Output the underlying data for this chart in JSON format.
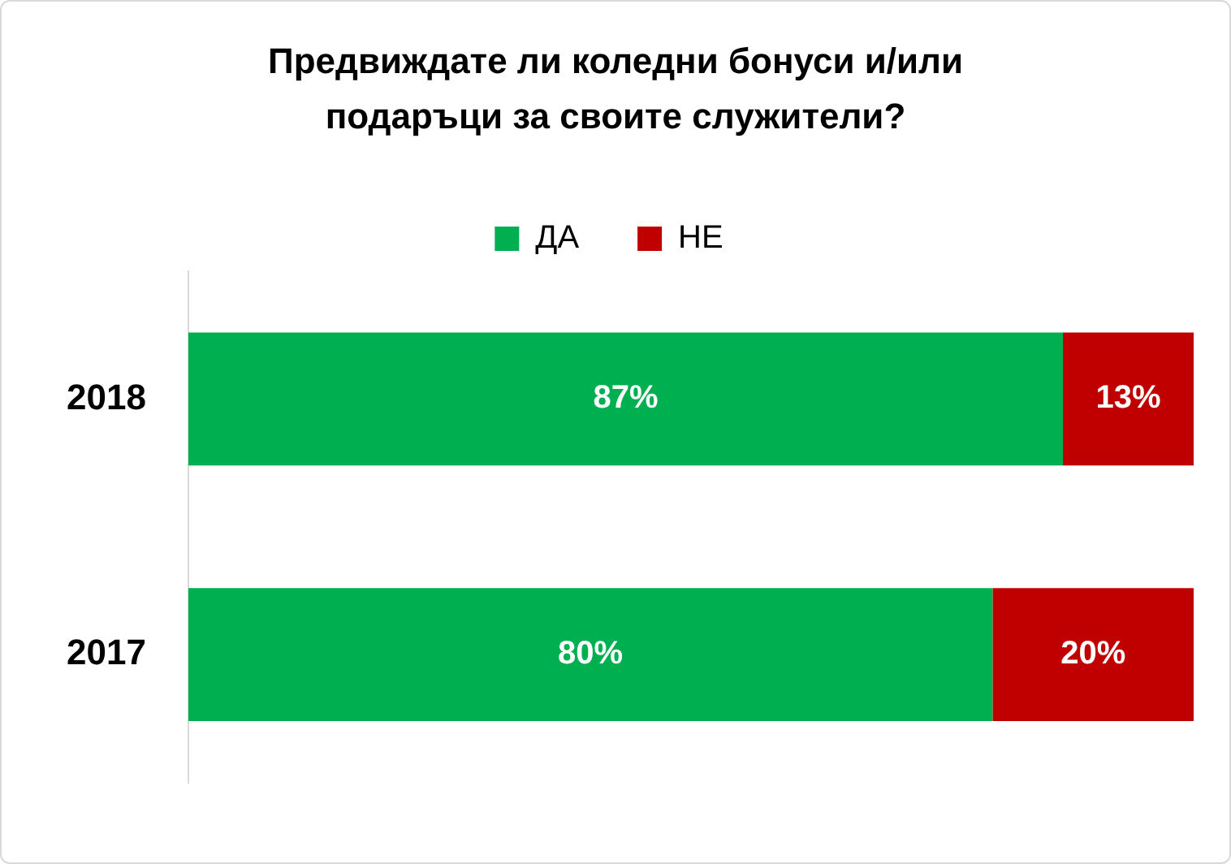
{
  "chart_data": {
    "type": "bar",
    "title": "Предвиждате ли коледни бонуси и/или подаръци за своите служители?",
    "orientation": "horizontal",
    "stacked": true,
    "categories": [
      "2018",
      "2017"
    ],
    "series": [
      {
        "name": "ДА",
        "color": "#00b050",
        "values": [
          87,
          80
        ],
        "value_labels": [
          "87%",
          "80%"
        ]
      },
      {
        "name": "НЕ",
        "color": "#c00000",
        "values": [
          13,
          20
        ],
        "value_labels": [
          "13%",
          "20%"
        ]
      }
    ],
    "legend": "top",
    "tick_labels": "y"
  }
}
